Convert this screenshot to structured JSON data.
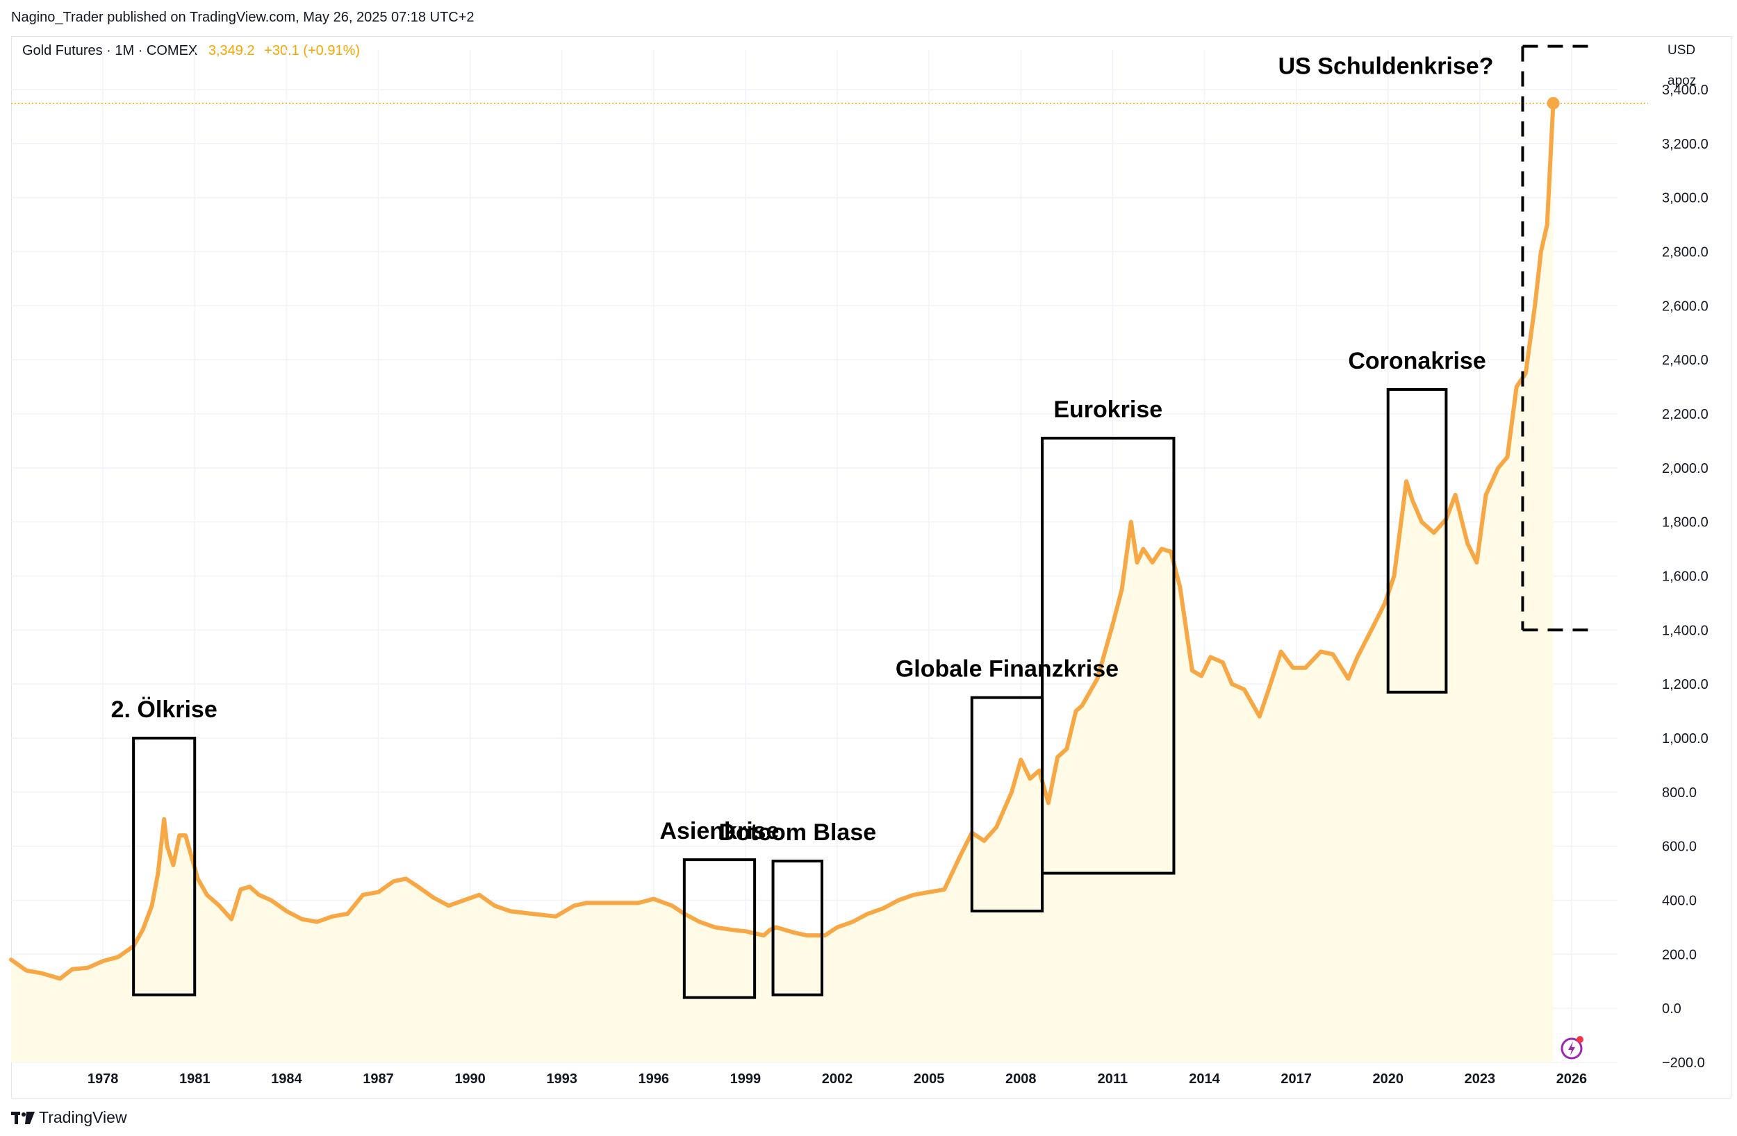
{
  "header": {
    "publisher": "Nagino_Trader published on TradingView.com, May 26, 2025 07:18 UTC+2"
  },
  "legend": {
    "symbol": "Gold Futures · 1M · COMEX",
    "price": "3,349.2",
    "change": "+30.1 (+0.91%)"
  },
  "axis": {
    "currency": "USD",
    "unit": "apoz"
  },
  "footer": {
    "brand": "TradingView"
  },
  "colors": {
    "line": "#f7a845",
    "area": "#fffbe6",
    "grid": "#f0f3fa",
    "price_line": "#f7a600",
    "box": "#000000"
  },
  "chart_data": {
    "type": "line",
    "title": "Gold Futures · 1M · COMEX",
    "xlabel": "",
    "ylabel": "USD",
    "xlim": [
      1975,
      2027.5
    ],
    "ylim": [
      -200,
      3500
    ],
    "x_ticks": [
      1978,
      1981,
      1984,
      1987,
      1990,
      1993,
      1996,
      1999,
      2002,
      2005,
      2008,
      2011,
      2014,
      2017,
      2020,
      2023,
      2026
    ],
    "y_ticks": [
      "3,400.0",
      "3,200.0",
      "3,000.0",
      "2,800.0",
      "2,600.0",
      "2,400.0",
      "2,200.0",
      "2,000.0",
      "1,800.0",
      "1,600.0",
      "1,400.0",
      "1,200.0",
      "1,000.0",
      "800.0",
      "600.0",
      "400.0",
      "200.0",
      "0.0",
      "−200.0"
    ],
    "y_tick_values": [
      3400,
      3200,
      3000,
      2800,
      2600,
      2400,
      2200,
      2000,
      1800,
      1600,
      1400,
      1200,
      1000,
      800,
      600,
      400,
      200,
      0,
      -200
    ],
    "last_price": 3349.2,
    "series": [
      {
        "name": "Gold Futures",
        "x": [
          1975.0,
          1975.5,
          1976.0,
          1976.6,
          1977.0,
          1977.5,
          1978.0,
          1978.5,
          1979.0,
          1979.3,
          1979.6,
          1979.8,
          1980.0,
          1980.1,
          1980.3,
          1980.5,
          1980.7,
          1980.9,
          1981.1,
          1981.4,
          1981.8,
          1982.2,
          1982.5,
          1982.8,
          1983.1,
          1983.5,
          1984.0,
          1984.5,
          1985.0,
          1985.5,
          1986.0,
          1986.5,
          1987.0,
          1987.5,
          1987.9,
          1988.3,
          1988.8,
          1989.3,
          1989.8,
          1990.3,
          1990.8,
          1991.3,
          1992.0,
          1992.8,
          1993.4,
          1993.8,
          1994.5,
          1995.5,
          1996.0,
          1996.6,
          1997.0,
          1997.5,
          1998.0,
          1998.6,
          1999.0,
          1999.6,
          1999.8,
          2000.0,
          2000.6,
          2001.0,
          2001.6,
          2002.0,
          2002.5,
          2003.0,
          2003.5,
          2004.0,
          2004.5,
          2005.0,
          2005.5,
          2006.0,
          2006.4,
          2006.8,
          2007.2,
          2007.7,
          2008.0,
          2008.3,
          2008.6,
          2008.9,
          2009.2,
          2009.5,
          2009.8,
          2010.0,
          2010.5,
          2011.0,
          2011.3,
          2011.6,
          2011.8,
          2012.0,
          2012.3,
          2012.6,
          2012.9,
          2013.2,
          2013.6,
          2013.9,
          2014.2,
          2014.6,
          2014.9,
          2015.3,
          2015.8,
          2016.1,
          2016.5,
          2016.9,
          2017.3,
          2017.8,
          2018.2,
          2018.7,
          2019.0,
          2019.5,
          2019.9,
          2020.2,
          2020.6,
          2020.8,
          2021.1,
          2021.5,
          2021.9,
          2022.2,
          2022.6,
          2022.9,
          2023.2,
          2023.6,
          2023.9,
          2024.2,
          2024.5,
          2024.8,
          2025.0,
          2025.2,
          2025.4
        ],
        "values": [
          180,
          140,
          130,
          110,
          145,
          150,
          175,
          190,
          230,
          290,
          380,
          500,
          700,
          600,
          530,
          640,
          640,
          560,
          480,
          420,
          380,
          330,
          440,
          450,
          420,
          400,
          360,
          330,
          320,
          340,
          350,
          420,
          430,
          470,
          480,
          450,
          410,
          380,
          400,
          420,
          380,
          360,
          350,
          340,
          380,
          390,
          390,
          390,
          405,
          380,
          350,
          320,
          300,
          290,
          285,
          270,
          290,
          300,
          280,
          270,
          270,
          300,
          320,
          350,
          370,
          400,
          420,
          430,
          440,
          560,
          650,
          620,
          670,
          800,
          920,
          850,
          880,
          760,
          930,
          960,
          1100,
          1120,
          1220,
          1420,
          1550,
          1800,
          1650,
          1700,
          1650,
          1700,
          1690,
          1560,
          1250,
          1230,
          1300,
          1280,
          1200,
          1180,
          1080,
          1180,
          1320,
          1260,
          1260,
          1320,
          1310,
          1220,
          1300,
          1410,
          1500,
          1600,
          1950,
          1880,
          1800,
          1760,
          1810,
          1900,
          1720,
          1650,
          1900,
          2000,
          2040,
          2300,
          2350,
          2600,
          2800,
          2900,
          3349.2
        ]
      }
    ],
    "annotations": [
      {
        "label": "2. Ölkrise",
        "x0": 1979.0,
        "x1": 1981.0,
        "y0": 50,
        "y1": 1000,
        "style": "solid"
      },
      {
        "label": "Asienkrise",
        "x0": 1997.0,
        "x1": 1999.3,
        "y0": 40,
        "y1": 550,
        "style": "solid"
      },
      {
        "label": "Dotcom Blase",
        "x0": 1999.9,
        "x1": 2001.5,
        "y0": 50,
        "y1": 545,
        "style": "solid"
      },
      {
        "label": "Globale Finanzkrise",
        "x0": 2006.4,
        "x1": 2008.7,
        "y0": 360,
        "y1": 1150,
        "style": "solid"
      },
      {
        "label": "Eurokrise",
        "x0": 2008.7,
        "x1": 2013.0,
        "y0": 500,
        "y1": 2110,
        "style": "solid"
      },
      {
        "label": "Coronakrise",
        "x0": 2020.0,
        "x1": 2021.9,
        "y0": 1170,
        "y1": 2290,
        "style": "solid"
      },
      {
        "label": "US Schuldenkrise?",
        "x0": 2024.4,
        "x1": 2026.8,
        "y0": 1400,
        "y1": 3560,
        "style": "dashed"
      }
    ]
  }
}
